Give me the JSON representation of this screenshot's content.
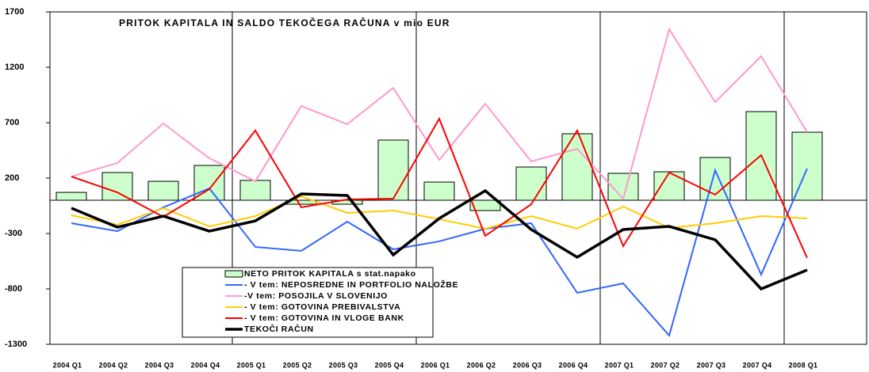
{
  "chart_data": {
    "type": "bar-line",
    "title": "PRITOK KAPITALA IN SALDO TEKOČEGA RAČUNA v mio EUR",
    "categories": [
      "2004 Q1",
      "2004 Q2",
      "2004 Q3",
      "2004 Q4",
      "2005 Q1",
      "2005 Q2",
      "2005 Q3",
      "2005 Q4",
      "2006 Q1",
      "2006 Q2",
      "2006 Q3",
      "2006 Q4",
      "2007 Q1",
      "2007 Q2",
      "2007 Q3",
      "2007 Q4",
      "2008 Q1"
    ],
    "ylim": [
      -1300,
      1700
    ],
    "yticks": [
      -1300,
      -800,
      -300,
      200,
      700,
      1200,
      1700
    ],
    "series": [
      {
        "name": "NETO PRITOK KAPITALA s stat.napako",
        "kind": "bar",
        "color": "#ccffcc",
        "values": [
          71,
          250,
          171,
          314,
          179,
          -36,
          -36,
          543,
          164,
          -93,
          300,
          600,
          243,
          257,
          386,
          800,
          614
        ]
      },
      {
        "name": "- V tem: NEPOSREDNE IN PORTFOLIO NALOŽBE",
        "kind": "line",
        "color": "#3366ff",
        "values": [
          -207,
          -279,
          -64,
          107,
          -421,
          -457,
          -193,
          -443,
          -371,
          -257,
          -207,
          -836,
          -750,
          -1221,
          271,
          -671,
          286
        ]
      },
      {
        "name": "-V tem: POSOJILA V SLOVENIJO",
        "kind": "line",
        "color": "#ff99cc",
        "values": [
          214,
          336,
          693,
          379,
          171,
          850,
          686,
          1014,
          364,
          871,
          350,
          464,
          14,
          1543,
          886,
          1300,
          614
        ]
      },
      {
        "name": "- V tem: GOTOVINA PREBIVALSTVA",
        "kind": "line",
        "color": "#ffcc00",
        "values": [
          -136,
          -221,
          -71,
          -236,
          -143,
          36,
          -114,
          -93,
          -171,
          -257,
          -143,
          -257,
          -57,
          -250,
          -207,
          -143,
          -164
        ]
      },
      {
        "name": "- V tem: GOTOVINA IN VLOGE BANK",
        "kind": "line",
        "color": "#ff0000",
        "values": [
          214,
          71,
          -150,
          100,
          629,
          -64,
          7,
          14,
          736,
          -321,
          -36,
          629,
          -414,
          250,
          50,
          407,
          -521
        ]
      },
      {
        "name": "TEKOČI RAČUN",
        "kind": "line",
        "color": "#000000",
        "values": [
          -71,
          -243,
          -143,
          -279,
          -186,
          57,
          43,
          -493,
          -164,
          86,
          -264,
          -514,
          -264,
          -236,
          -357,
          -800,
          -629
        ]
      }
    ]
  }
}
